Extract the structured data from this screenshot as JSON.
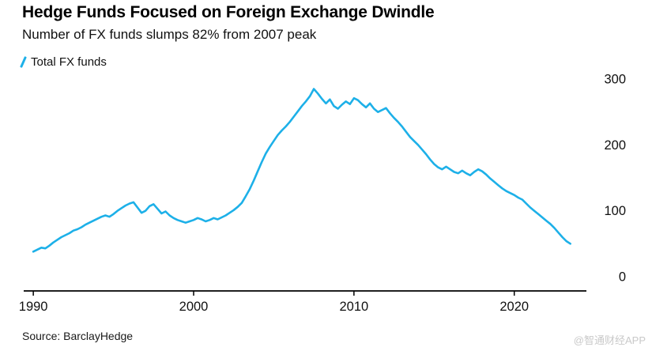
{
  "footer": {
    "source": "Source: BarclayHedge",
    "watermark": "@智通财经APP"
  },
  "chart_data": {
    "type": "line",
    "title": "Hedge Funds Focused on Foreign Exchange Dwindle",
    "subtitle": "Number of FX funds slumps 82% from 2007 peak",
    "xlabel": "",
    "ylabel": "",
    "xlim": [
      1989.5,
      2024.5
    ],
    "ylim": [
      0,
      300
    ],
    "xticks": [
      1990,
      2000,
      2010,
      2020
    ],
    "yticks": [
      0,
      100,
      200,
      300
    ],
    "grid": false,
    "legend_position": "top-left",
    "x_start": 1990,
    "x_step": 0.25,
    "series": [
      {
        "name": "Total FX funds",
        "color": "#1db0e8",
        "values": [
          38,
          41,
          44,
          43,
          47,
          52,
          56,
          60,
          63,
          66,
          70,
          72,
          75,
          79,
          82,
          85,
          88,
          91,
          93,
          91,
          95,
          100,
          104,
          108,
          111,
          113,
          105,
          97,
          100,
          107,
          110,
          103,
          96,
          99,
          93,
          89,
          86,
          84,
          82,
          84,
          86,
          89,
          87,
          84,
          86,
          89,
          87,
          90,
          93,
          97,
          101,
          106,
          112,
          122,
          133,
          146,
          160,
          174,
          187,
          197,
          206,
          215,
          222,
          228,
          235,
          243,
          251,
          259,
          266,
          274,
          285,
          278,
          270,
          263,
          269,
          259,
          255,
          261,
          266,
          262,
          271,
          268,
          262,
          257,
          263,
          255,
          250,
          253,
          256,
          248,
          241,
          235,
          228,
          220,
          212,
          206,
          200,
          193,
          186,
          178,
          171,
          166,
          163,
          167,
          163,
          159,
          157,
          161,
          157,
          154,
          159,
          163,
          160,
          155,
          149,
          144,
          139,
          134,
          130,
          127,
          124,
          120,
          117,
          111,
          105,
          100,
          95,
          90,
          85,
          80,
          74,
          67,
          60,
          54,
          50
        ]
      }
    ]
  }
}
